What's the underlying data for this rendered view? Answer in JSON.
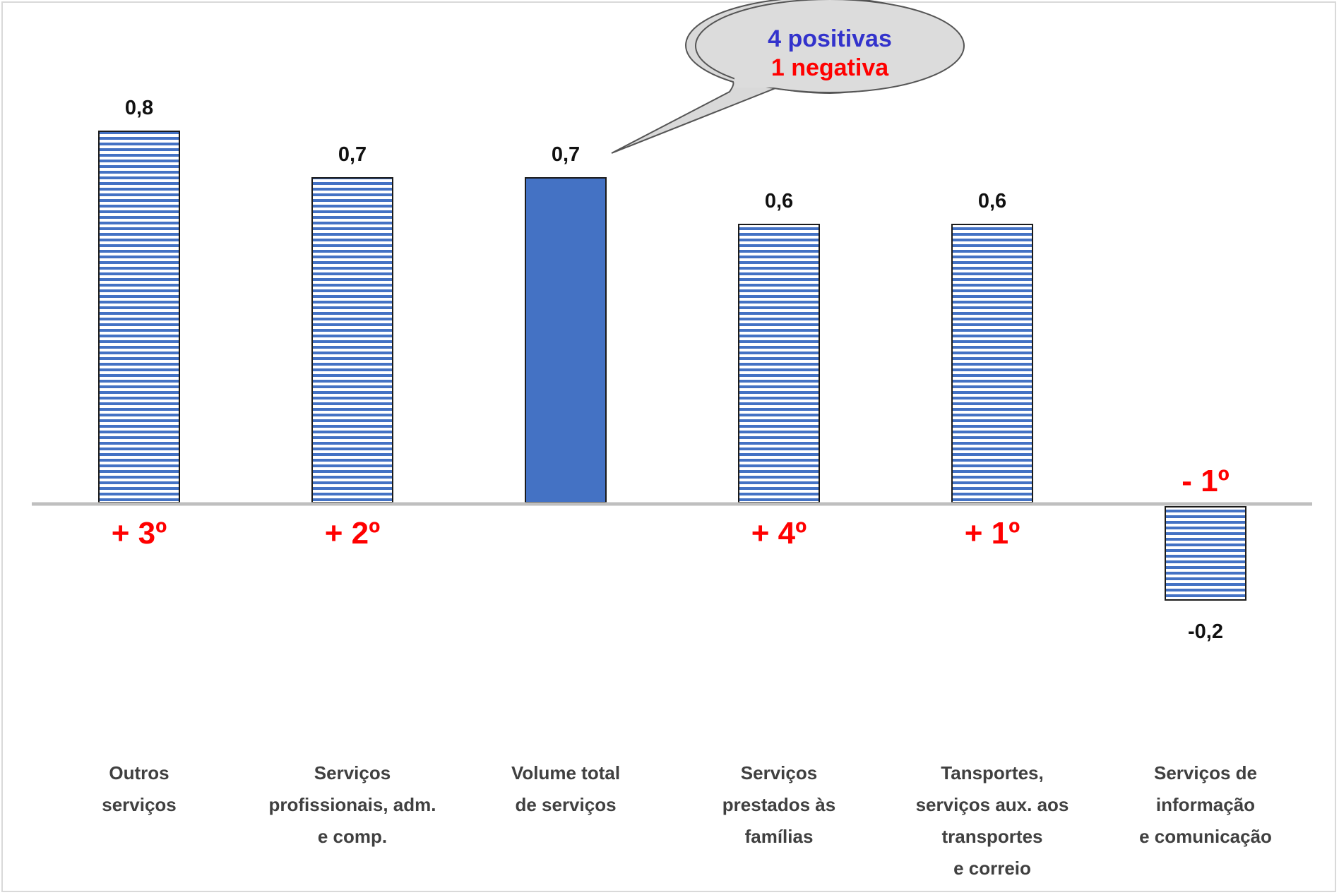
{
  "chart_data": {
    "type": "bar",
    "categories": [
      [
        "Outros",
        "serviços"
      ],
      [
        "Serviços",
        "profissionais, adm.",
        "e comp."
      ],
      [
        "Volume total",
        "de serviços"
      ],
      [
        "Serviços",
        "prestados às",
        "famílias"
      ],
      [
        "Tansportes,",
        "serviços aux. aos",
        "transportes",
        "e correio"
      ],
      [
        "Serviços de",
        "informação",
        "e comunicação"
      ]
    ],
    "values": [
      0.8,
      0.7,
      0.7,
      0.6,
      0.6,
      -0.2
    ],
    "value_labels": [
      "0,8",
      "0,7",
      "0,7",
      "0,6",
      "0,6",
      "-0,2"
    ],
    "rank_labels": [
      "+ 3º",
      "+ 2º",
      "",
      "+ 4º",
      "+ 1º",
      "- 1º"
    ],
    "bar_styles": [
      "striped",
      "striped",
      "solid",
      "striped",
      "striped",
      "striped"
    ],
    "ylim": [
      -0.5,
      1.0
    ],
    "grid": false,
    "colors": {
      "bar_fill": "#4472c4",
      "stripe_bg": "#ffffff",
      "axis_line": "#bfbfbf",
      "rank_text": "#ff0000",
      "value_text": "#111111",
      "category_text": "#404040"
    },
    "annotation": {
      "line1": "4 positivas",
      "line2": "1 negativa",
      "line1_color": "#3333cc",
      "line2_color": "#ff0000"
    }
  }
}
